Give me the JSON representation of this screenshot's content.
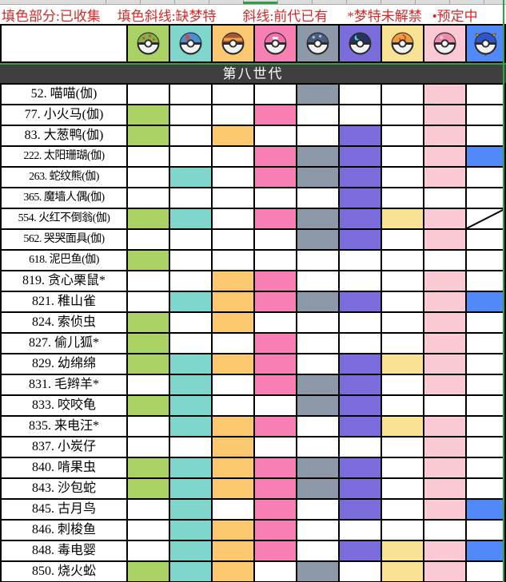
{
  "legend": {
    "color": "#d42a2a",
    "parts": [
      "填色部分:已收集",
      "填色斜线:缺梦特",
      "斜线:前代已有",
      "*梦特未解禁",
      "•预定中"
    ]
  },
  "generation_header": "第八世代",
  "accent_green": "#2aa345",
  "header_bg": "#3f3f3f",
  "columns": [
    {
      "name": "friend-ball",
      "bg": "#a9d164",
      "ball_top": "#7fb544",
      "motif": "dots"
    },
    {
      "name": "lure-ball",
      "bg": "#7ed6cd",
      "ball_top": "#4b8fd2",
      "motif": "patch"
    },
    {
      "name": "level-ball",
      "bg": "#fbc76f",
      "ball_top": "#a8543c",
      "motif": "stripe"
    },
    {
      "name": "love-ball",
      "bg": "#f87fb4",
      "ball_top": "#f170ac",
      "motif": "heart"
    },
    {
      "name": "heavy-ball",
      "bg": "#8d99a8",
      "ball_top": "#4a5f80",
      "motif": "hdots"
    },
    {
      "name": "moon-ball",
      "bg": "#7b6cdc",
      "ball_top": "#26335f",
      "motif": "crescent"
    },
    {
      "name": "fast-ball",
      "bg": "#f9e294",
      "ball_top": "#f09c3c",
      "motif": "swirl"
    },
    {
      "name": "dream-ball",
      "bg": "#fbc9d4",
      "ball_top": "#f089ae",
      "motif": "shine"
    },
    {
      "name": "beast-ball",
      "bg": "#5289f8",
      "ball_top": "#2f55cc",
      "motif": "beast"
    }
  ],
  "rows": [
    {
      "name": "52. 喵喵(伽)",
      "cells": [
        0,
        0,
        0,
        0,
        1,
        0,
        0,
        1,
        0
      ]
    },
    {
      "name": "77. 小火马(伽)",
      "cells": [
        1,
        0,
        0,
        1,
        0,
        0,
        0,
        1,
        0
      ]
    },
    {
      "name": "83. 大葱鸭(伽)",
      "cells": [
        1,
        0,
        1,
        0,
        0,
        1,
        0,
        1,
        0
      ]
    },
    {
      "name": "222. 太阳珊瑚(伽)",
      "cells": [
        0,
        0,
        0,
        1,
        1,
        1,
        0,
        1,
        1
      ]
    },
    {
      "name": "263. 蛇纹熊(伽)",
      "cells": [
        0,
        1,
        0,
        1,
        1,
        1,
        0,
        1,
        0
      ]
    },
    {
      "name": "365. 魔墙人偶(伽)",
      "cells": [
        0,
        0,
        0,
        0,
        0,
        1,
        0,
        0,
        0
      ]
    },
    {
      "name": "554. 火红不倒翁(伽)",
      "cells": [
        1,
        1,
        0,
        1,
        1,
        1,
        1,
        1,
        "slash"
      ]
    },
    {
      "name": "562. 哭哭面具(伽)",
      "cells": [
        0,
        0,
        0,
        0,
        1,
        1,
        0,
        1,
        0
      ]
    },
    {
      "name": "618. 泥巴鱼(伽)",
      "cells": [
        1,
        0,
        0,
        0,
        0,
        0,
        0,
        0,
        0
      ]
    },
    {
      "name": "819. 贪心栗鼠*",
      "cells": [
        0,
        0,
        1,
        1,
        0,
        0,
        0,
        1,
        0
      ]
    },
    {
      "name": "821. 稚山雀",
      "cells": [
        0,
        1,
        1,
        1,
        1,
        1,
        0,
        1,
        1
      ]
    },
    {
      "name": "824. 索侦虫",
      "cells": [
        1,
        0,
        1,
        0,
        0,
        0,
        0,
        1,
        0
      ]
    },
    {
      "name": "827. 偷儿狐*",
      "cells": [
        1,
        0,
        0,
        1,
        0,
        0,
        0,
        1,
        0
      ]
    },
    {
      "name": "829. 幼绵绵",
      "cells": [
        1,
        1,
        1,
        1,
        0,
        1,
        1,
        1,
        0
      ]
    },
    {
      "name": "831. 毛辫羊*",
      "cells": [
        0,
        1,
        0,
        1,
        1,
        1,
        0,
        1,
        0
      ]
    },
    {
      "name": "833. 咬咬龟",
      "cells": [
        1,
        1,
        0,
        0,
        1,
        1,
        0,
        0,
        0
      ]
    },
    {
      "name": "835. 来电汪*",
      "cells": [
        0,
        1,
        1,
        1,
        0,
        1,
        1,
        1,
        0
      ]
    },
    {
      "name": "837. 小炭仔",
      "cells": [
        0,
        0,
        1,
        0,
        0,
        0,
        0,
        1,
        0
      ]
    },
    {
      "name": "840. 啃果虫",
      "cells": [
        1,
        1,
        1,
        1,
        1,
        1,
        0,
        1,
        0
      ]
    },
    {
      "name": "843. 沙包蛇",
      "cells": [
        1,
        1,
        1,
        1,
        1,
        1,
        0,
        1,
        0
      ]
    },
    {
      "name": "845. 古月鸟",
      "cells": [
        0,
        1,
        0,
        1,
        0,
        1,
        0,
        1,
        1
      ]
    },
    {
      "name": "846. 刺梭鱼",
      "cells": [
        0,
        1,
        1,
        1,
        0,
        0,
        0,
        0,
        0
      ]
    },
    {
      "name": "848. 毒电婴",
      "cells": [
        0,
        1,
        1,
        1,
        0,
        1,
        1,
        1,
        1
      ]
    },
    {
      "name": "850. 烧火蚣",
      "cells": [
        1,
        1,
        1,
        0,
        1,
        0,
        1,
        1,
        0
      ]
    }
  ]
}
